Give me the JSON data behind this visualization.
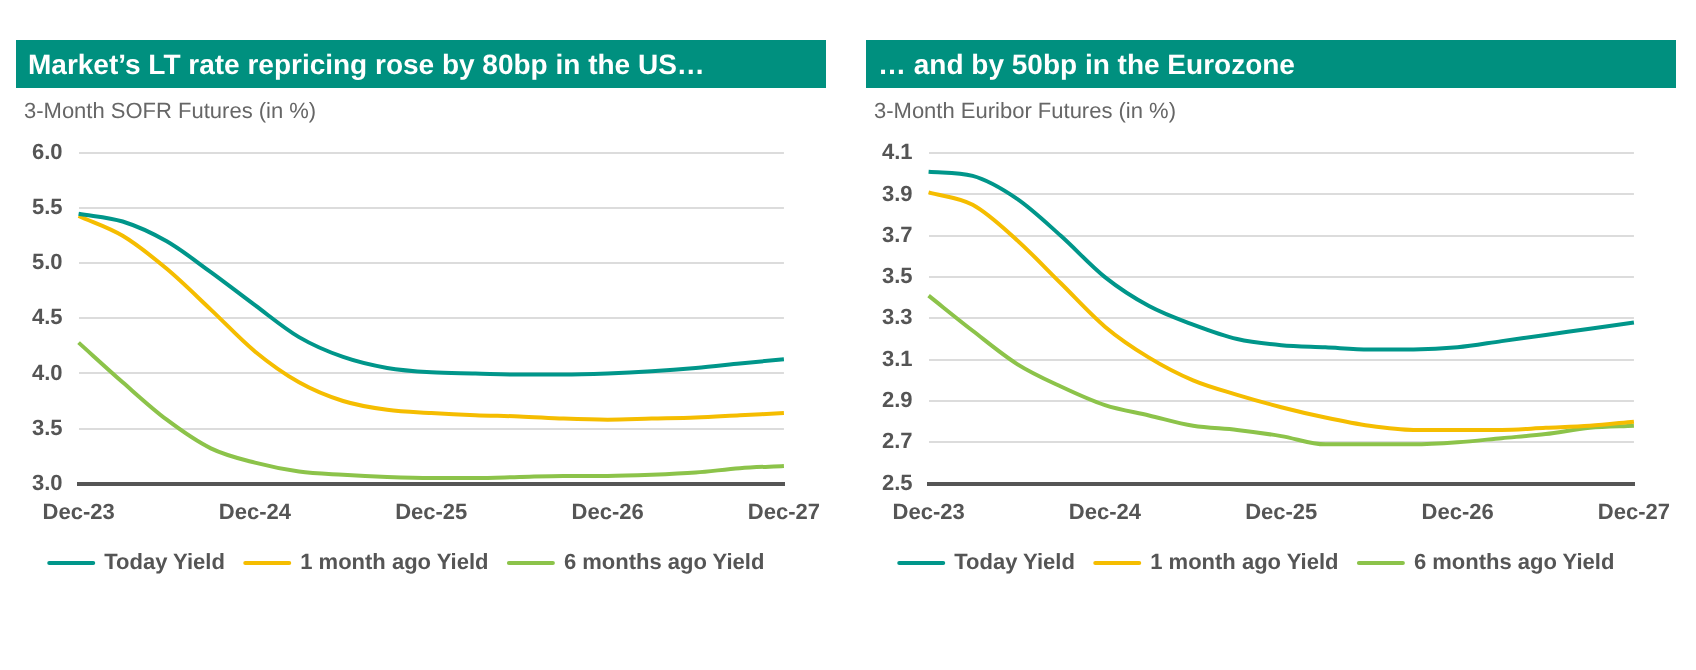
{
  "chart_data": [
    {
      "type": "line",
      "title": "Market’s LT rate repricing rose by 80bp in the US…",
      "subtitle": "3-Month SOFR Futures (in %)",
      "categories": [
        "Dec-23",
        null,
        null,
        null,
        "Dec-24",
        null,
        null,
        null,
        "Dec-25",
        null,
        null,
        null,
        "Dec-26",
        null,
        null,
        null,
        "Dec-27"
      ],
      "series": [
        {
          "name": "Today Yield",
          "color": "#00968a",
          "values": [
            5.45,
            5.38,
            5.2,
            4.92,
            4.62,
            4.33,
            4.15,
            4.05,
            4.01,
            4.0,
            3.99,
            3.99,
            4.0,
            4.02,
            4.05,
            4.09,
            4.13
          ]
        },
        {
          "name": "1 month ago Yield",
          "color": "#f5bd00",
          "values": [
            5.43,
            5.25,
            4.95,
            4.58,
            4.2,
            3.92,
            3.75,
            3.67,
            3.64,
            3.62,
            3.61,
            3.59,
            3.58,
            3.59,
            3.6,
            3.62,
            3.64
          ]
        },
        {
          "name": "6 months ago Yield",
          "color": "#8cc34a",
          "values": [
            4.28,
            3.92,
            3.58,
            3.32,
            3.19,
            3.11,
            3.08,
            3.06,
            3.05,
            3.05,
            3.06,
            3.07,
            3.07,
            3.08,
            3.1,
            3.14,
            3.16
          ]
        }
      ],
      "ylim": [
        3,
        6
      ],
      "yticks": [
        {
          "value": 3,
          "label": "3.0"
        },
        3.5,
        {
          "value": 4,
          "label": "4.0"
        },
        4.5,
        {
          "value": 5,
          "label": "5.0"
        },
        5.5,
        {
          "value": 6,
          "label": "6.0"
        }
      ],
      "grid": "y",
      "legend": "bottom",
      "marker": "none",
      "line_style": "solid"
    },
    {
      "type": "line",
      "title": "… and by 50bp in the Eurozone",
      "subtitle": "3-Month Euribor Futures (in %)",
      "categories": [
        "Dec-23",
        null,
        null,
        null,
        "Dec-24",
        null,
        null,
        null,
        "Dec-25",
        null,
        null,
        null,
        "Dec-26",
        null,
        null,
        null,
        "Dec-27"
      ],
      "series": [
        {
          "name": "Today Yield",
          "color": "#00968a",
          "values": [
            4.01,
            3.99,
            3.88,
            3.7,
            3.5,
            3.36,
            3.27,
            3.2,
            3.17,
            3.16,
            3.15,
            3.15,
            3.16,
            3.19,
            3.22,
            3.25,
            3.28
          ]
        },
        {
          "name": "1 month ago Yield",
          "color": "#f5bd00",
          "values": [
            3.91,
            3.85,
            3.68,
            3.47,
            3.26,
            3.11,
            3.0,
            2.93,
            2.87,
            2.82,
            2.78,
            2.76,
            2.76,
            2.76,
            2.77,
            2.78,
            2.8
          ]
        },
        {
          "name": "6 months ago Yield",
          "color": "#8cc34a",
          "values": [
            3.41,
            3.24,
            3.08,
            2.97,
            2.88,
            2.83,
            2.78,
            2.76,
            2.73,
            2.69,
            2.69,
            2.69,
            2.7,
            2.72,
            2.74,
            2.77,
            2.78
          ]
        }
      ],
      "ylim": [
        2.5,
        4.1
      ],
      "yticks": [
        2.5,
        2.7,
        2.9,
        3.1,
        3.3,
        3.5,
        3.7,
        3.9,
        4.1
      ],
      "grid": "y",
      "legend": "bottom",
      "marker": "none",
      "line_style": "solid"
    }
  ]
}
